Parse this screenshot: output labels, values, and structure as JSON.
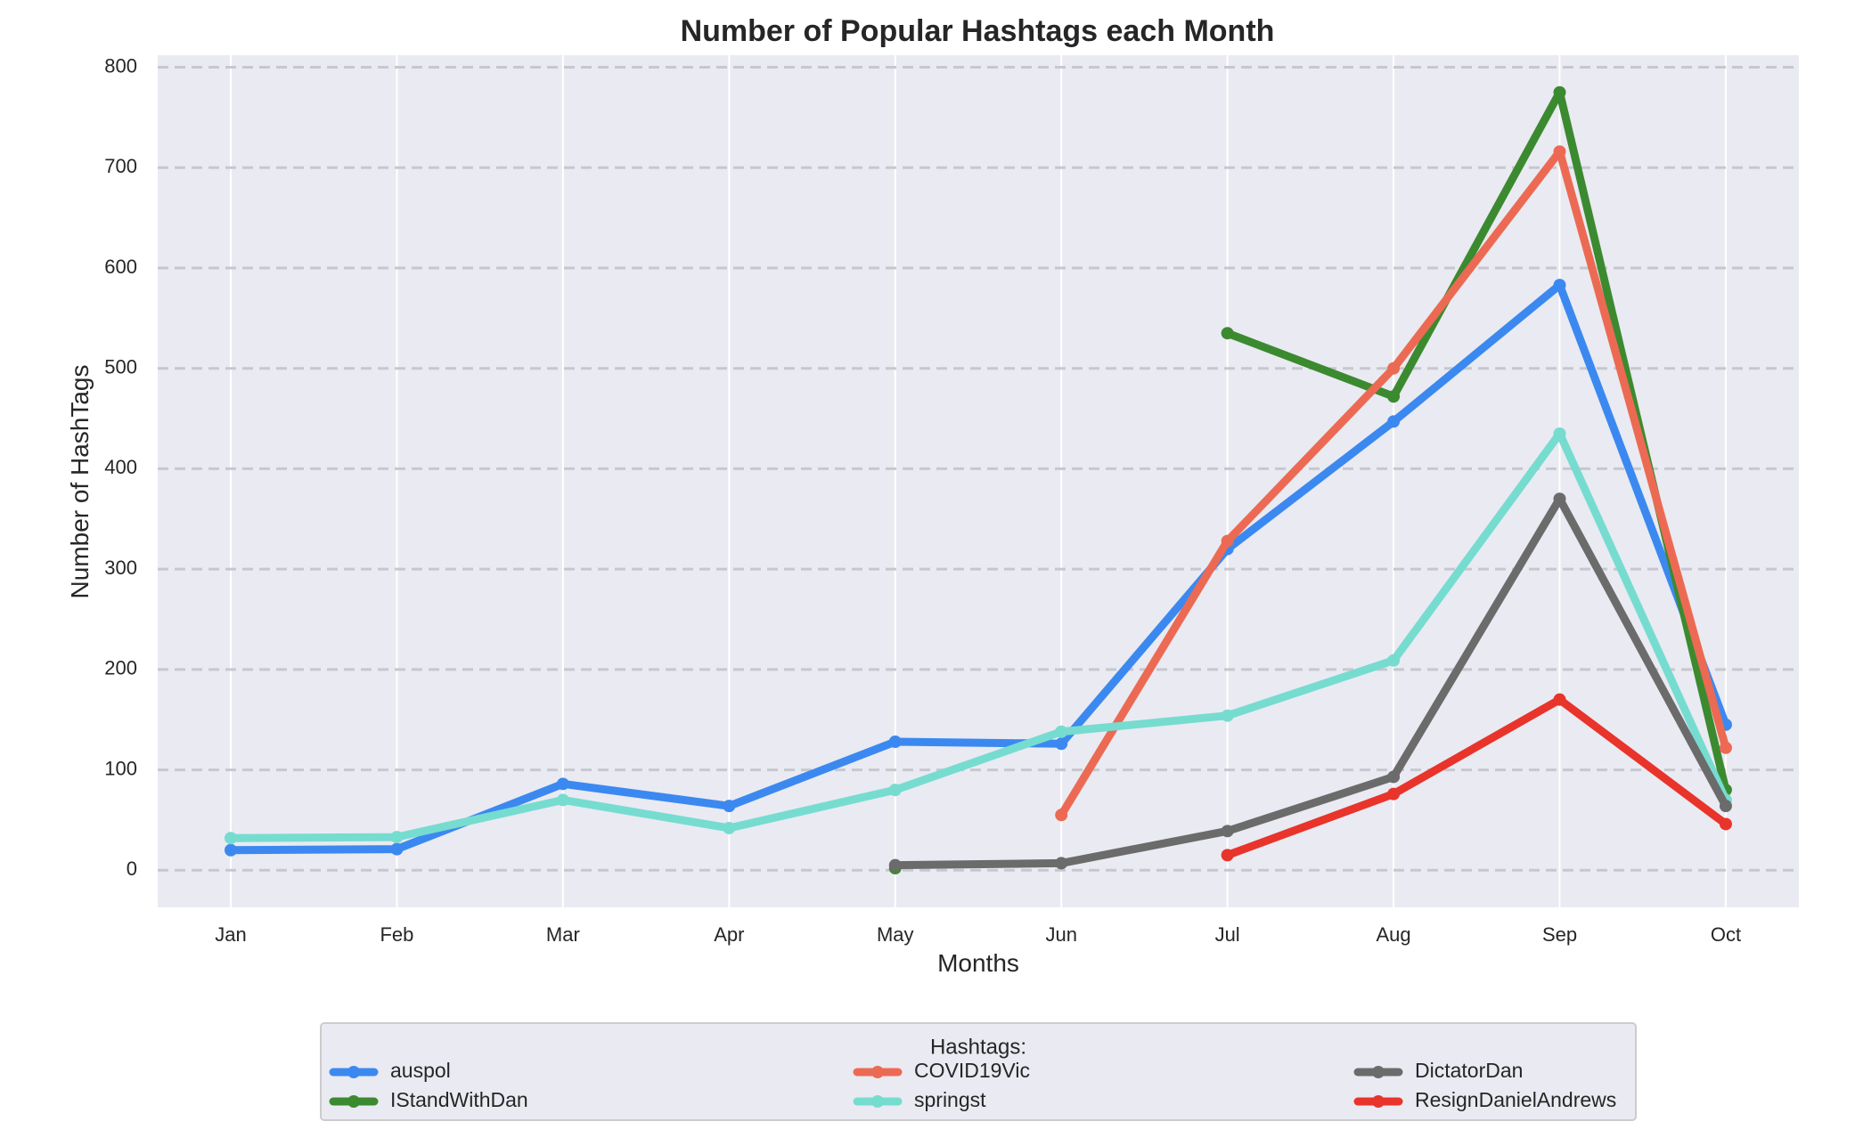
{
  "chart_data": {
    "type": "line",
    "title": "Number of Popular Hashtags each Month",
    "xlabel": "Months",
    "ylabel": "Number of HashTags",
    "categories": [
      "Jan",
      "Feb",
      "Mar",
      "Apr",
      "May",
      "Jun",
      "Jul",
      "Aug",
      "Sep",
      "Oct"
    ],
    "ylim": [
      -37,
      812
    ],
    "yticks": [
      0,
      100,
      200,
      300,
      400,
      500,
      600,
      700,
      800
    ],
    "grid": {
      "vertical": "solid-white",
      "horizontal": "dashed"
    },
    "legend": {
      "title": "Hashtags:",
      "placement": "bottom-center",
      "columns": 3
    },
    "series": [
      {
        "name": "auspol",
        "color": "#3b89f0",
        "values": [
          20,
          21,
          86,
          64,
          128,
          126,
          320,
          447,
          583,
          145
        ]
      },
      {
        "name": "IStandWithDan",
        "color": "#3c8a30",
        "values": [
          null,
          null,
          null,
          null,
          2,
          null,
          535,
          472,
          775,
          80
        ]
      },
      {
        "name": "COVID19Vic",
        "color": "#ec6a53",
        "values": [
          null,
          null,
          null,
          null,
          null,
          55,
          328,
          500,
          716,
          122
        ]
      },
      {
        "name": "springst",
        "color": "#76dcd0",
        "values": [
          32,
          33,
          70,
          42,
          80,
          138,
          154,
          209,
          435,
          70
        ]
      },
      {
        "name": "DictatorDan",
        "color": "#6b6b6b",
        "values": [
          null,
          null,
          null,
          null,
          5,
          7,
          39,
          93,
          370,
          64
        ]
      },
      {
        "name": "ResignDanielAndrews",
        "color": "#e8342a",
        "values": [
          null,
          null,
          null,
          null,
          null,
          null,
          15,
          76,
          170,
          46
        ]
      }
    ]
  }
}
